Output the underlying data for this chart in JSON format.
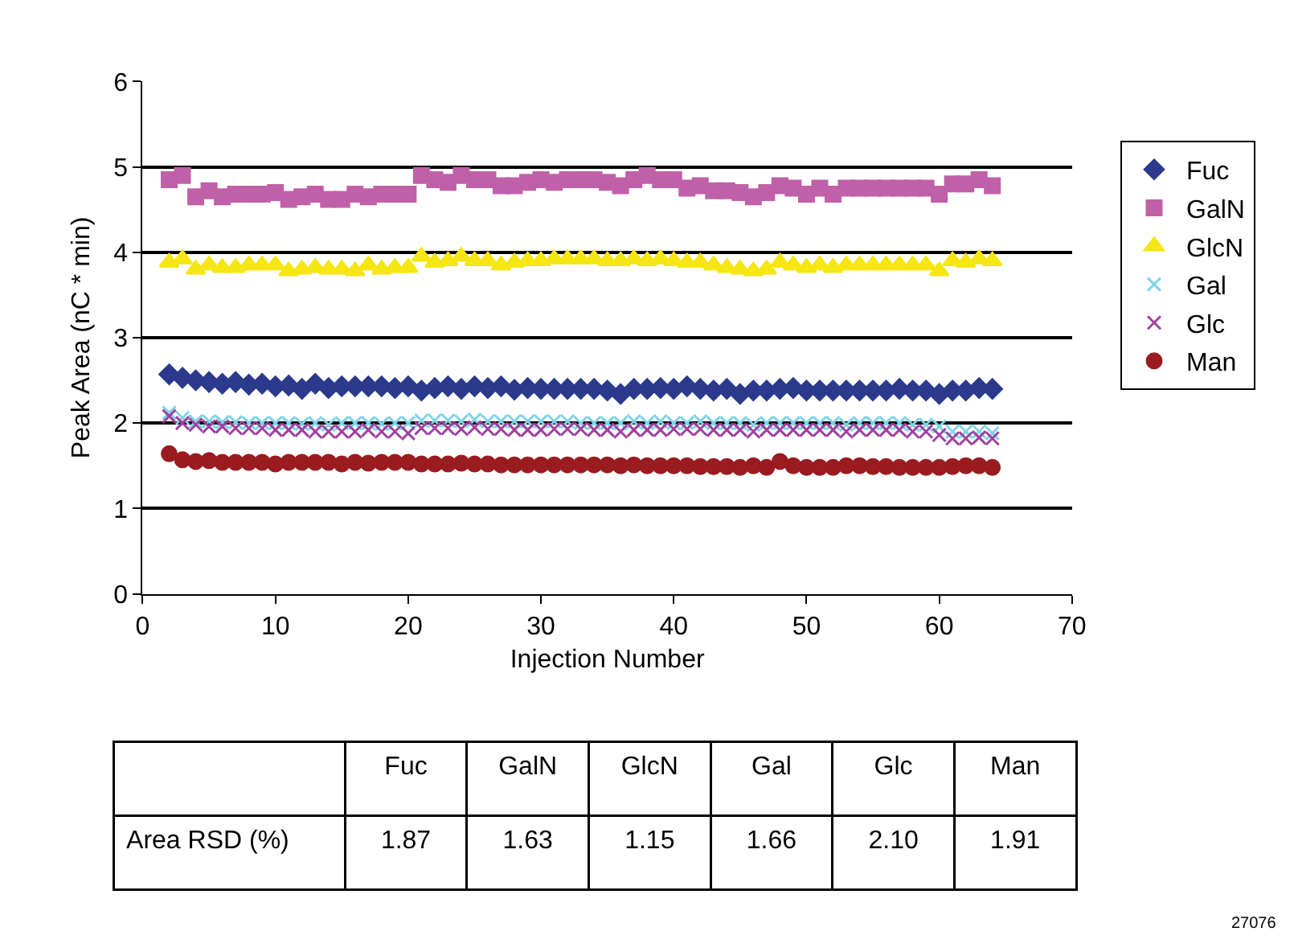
{
  "chart_data": [
    {
      "type": "scatter",
      "xlabel": "Injection Number",
      "ylabel": "Peak Area (nC * min)",
      "x": [
        2,
        3,
        4,
        5,
        6,
        7,
        8,
        9,
        10,
        11,
        12,
        13,
        14,
        15,
        16,
        17,
        18,
        19,
        20,
        21,
        22,
        23,
        24,
        25,
        26,
        27,
        28,
        29,
        30,
        31,
        32,
        33,
        34,
        35,
        36,
        37,
        38,
        39,
        40,
        41,
        42,
        43,
        44,
        45,
        46,
        47,
        48,
        49,
        50,
        51,
        52,
        53,
        54,
        55,
        56,
        57,
        58,
        59,
        60,
        61,
        62,
        63,
        64
      ],
      "series": [
        {
          "name": "Fuc",
          "color": "#2b3a8c",
          "marker": "diamond",
          "values": [
            2.57,
            2.53,
            2.5,
            2.48,
            2.46,
            2.48,
            2.45,
            2.46,
            2.43,
            2.44,
            2.4,
            2.46,
            2.41,
            2.43,
            2.43,
            2.43,
            2.43,
            2.41,
            2.43,
            2.38,
            2.41,
            2.43,
            2.4,
            2.43,
            2.41,
            2.43,
            2.39,
            2.41,
            2.4,
            2.4,
            2.4,
            2.4,
            2.4,
            2.38,
            2.34,
            2.4,
            2.4,
            2.41,
            2.4,
            2.43,
            2.4,
            2.38,
            2.4,
            2.34,
            2.38,
            2.38,
            2.4,
            2.41,
            2.38,
            2.38,
            2.38,
            2.38,
            2.38,
            2.38,
            2.38,
            2.4,
            2.38,
            2.38,
            2.34,
            2.38,
            2.38,
            2.41,
            2.4
          ]
        },
        {
          "name": "GalN",
          "color": "#c060a8",
          "marker": "square",
          "values": [
            4.85,
            4.9,
            4.65,
            4.72,
            4.65,
            4.68,
            4.68,
            4.68,
            4.7,
            4.62,
            4.65,
            4.68,
            4.62,
            4.62,
            4.68,
            4.65,
            4.68,
            4.68,
            4.68,
            4.9,
            4.85,
            4.82,
            4.9,
            4.85,
            4.85,
            4.78,
            4.78,
            4.82,
            4.85,
            4.82,
            4.85,
            4.85,
            4.85,
            4.82,
            4.78,
            4.85,
            4.9,
            4.85,
            4.85,
            4.75,
            4.78,
            4.72,
            4.72,
            4.7,
            4.65,
            4.7,
            4.78,
            4.75,
            4.68,
            4.75,
            4.68,
            4.75,
            4.75,
            4.75,
            4.75,
            4.75,
            4.75,
            4.75,
            4.68,
            4.8,
            4.8,
            4.85,
            4.78
          ]
        },
        {
          "name": "GlcN",
          "color": "#f5e614",
          "marker": "triangle",
          "values": [
            3.88,
            3.92,
            3.8,
            3.85,
            3.82,
            3.82,
            3.85,
            3.85,
            3.85,
            3.78,
            3.8,
            3.82,
            3.8,
            3.8,
            3.78,
            3.85,
            3.8,
            3.82,
            3.82,
            3.95,
            3.88,
            3.9,
            3.95,
            3.9,
            3.9,
            3.85,
            3.88,
            3.9,
            3.9,
            3.92,
            3.92,
            3.92,
            3.92,
            3.9,
            3.9,
            3.92,
            3.9,
            3.92,
            3.9,
            3.88,
            3.88,
            3.85,
            3.82,
            3.8,
            3.78,
            3.8,
            3.88,
            3.85,
            3.82,
            3.85,
            3.82,
            3.85,
            3.85,
            3.85,
            3.85,
            3.85,
            3.85,
            3.85,
            3.78,
            3.9,
            3.88,
            3.92,
            3.9
          ]
        },
        {
          "name": "Gal",
          "color": "#7fd4e8",
          "marker": "cross",
          "values": [
            2.12,
            2.06,
            2.02,
            2.02,
            2.01,
            2.01,
            2.0,
            2.0,
            2.0,
            2.0,
            1.99,
            2.0,
            1.98,
            2.0,
            2.0,
            2.0,
            1.99,
            2.0,
            2.0,
            2.03,
            2.03,
            2.03,
            2.02,
            2.04,
            2.02,
            2.02,
            2.02,
            2.02,
            2.02,
            2.02,
            2.02,
            2.0,
            2.0,
            2.0,
            2.0,
            2.02,
            2.0,
            2.02,
            2.0,
            2.0,
            2.02,
            2.0,
            2.0,
            2.0,
            1.98,
            2.0,
            2.0,
            2.0,
            2.0,
            2.0,
            2.0,
            1.98,
            2.0,
            2.0,
            2.0,
            2.0,
            1.98,
            1.98,
            1.96,
            1.9,
            1.9,
            1.9,
            1.88
          ]
        },
        {
          "name": "Glc",
          "color": "#a040a0",
          "marker": "cross",
          "values": [
            2.08,
            2.0,
            1.98,
            1.96,
            1.96,
            1.94,
            1.94,
            1.94,
            1.92,
            1.92,
            1.92,
            1.9,
            1.9,
            1.9,
            1.9,
            1.92,
            1.9,
            1.9,
            1.88,
            1.94,
            1.94,
            1.94,
            1.93,
            1.95,
            1.93,
            1.93,
            1.92,
            1.92,
            1.92,
            1.93,
            1.93,
            1.93,
            1.92,
            1.92,
            1.9,
            1.92,
            1.92,
            1.92,
            1.93,
            1.93,
            1.93,
            1.92,
            1.92,
            1.92,
            1.9,
            1.92,
            1.92,
            1.92,
            1.92,
            1.92,
            1.92,
            1.9,
            1.92,
            1.92,
            1.92,
            1.92,
            1.9,
            1.9,
            1.86,
            1.82,
            1.82,
            1.83,
            1.82
          ]
        },
        {
          "name": "Man",
          "color": "#9a1c20",
          "marker": "circle",
          "values": [
            1.64,
            1.57,
            1.55,
            1.56,
            1.54,
            1.54,
            1.54,
            1.54,
            1.52,
            1.54,
            1.54,
            1.54,
            1.54,
            1.52,
            1.54,
            1.53,
            1.54,
            1.54,
            1.54,
            1.52,
            1.52,
            1.52,
            1.53,
            1.52,
            1.52,
            1.51,
            1.51,
            1.51,
            1.51,
            1.51,
            1.51,
            1.51,
            1.51,
            1.51,
            1.5,
            1.51,
            1.5,
            1.5,
            1.5,
            1.5,
            1.49,
            1.49,
            1.49,
            1.48,
            1.5,
            1.48,
            1.55,
            1.5,
            1.48,
            1.48,
            1.48,
            1.5,
            1.5,
            1.49,
            1.49,
            1.48,
            1.48,
            1.48,
            1.48,
            1.49,
            1.5,
            1.5,
            1.48
          ]
        }
      ],
      "xlim": [
        0,
        70
      ],
      "xticks": [
        0,
        10,
        20,
        30,
        40,
        50,
        60,
        70
      ],
      "ylim": [
        0,
        6
      ],
      "yticks": [
        0,
        1,
        2,
        3,
        4,
        5,
        6
      ],
      "grid": "y",
      "legend": "right",
      "annotations": [
        "27076"
      ]
    },
    {
      "type": "other",
      "categories": [
        "Fuc",
        "GalN",
        "GlcN",
        "Gal",
        "Glc",
        "Man"
      ],
      "series": [
        {
          "name": "Area RSD (%)",
          "values": [
            1.87,
            1.63,
            1.15,
            1.66,
            2.1,
            1.91
          ],
          "value_labels": [
            "1.87",
            "1.63",
            "1.15",
            "1.66",
            "2.10",
            "1.91"
          ]
        }
      ]
    }
  ]
}
